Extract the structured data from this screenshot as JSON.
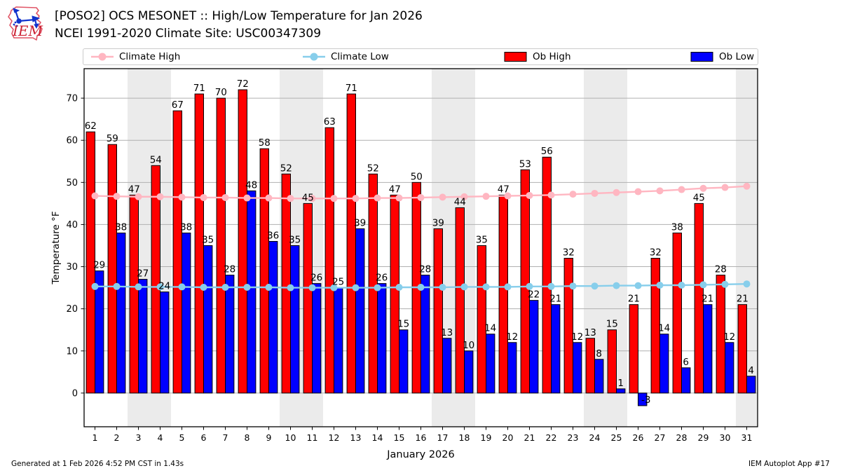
{
  "header": {
    "title": "[POSO2] OCS MESONET :: High/Low Temperature for Jan 2026",
    "subtitle": "NCEI 1991-2020 Climate Site: USC00347309",
    "logo_text": "IEM"
  },
  "footer": {
    "left": "Generated at 1 Feb 2026 4:52 PM CST in 1.43s",
    "right": "IEM Autoplot App #17"
  },
  "chart_data": {
    "type": "bar",
    "title": "[POSO2] OCS MESONET :: High/Low Temperature for Jan 2026",
    "subtitle": "NCEI 1991-2020 Climate Site: USC00347309",
    "xlabel": "January 2026",
    "ylabel": "Temperature °F",
    "ylim": [
      -8,
      77
    ],
    "yticks": [
      0,
      10,
      20,
      30,
      40,
      50,
      60,
      70
    ],
    "categories": [
      1,
      2,
      3,
      4,
      5,
      6,
      7,
      8,
      9,
      10,
      11,
      12,
      13,
      14,
      15,
      16,
      17,
      18,
      19,
      20,
      21,
      22,
      23,
      24,
      25,
      26,
      27,
      28,
      29,
      30,
      31
    ],
    "weekend_shading_days": [
      [
        3,
        4
      ],
      [
        10,
        11
      ],
      [
        17,
        18
      ],
      [
        24,
        25
      ],
      [
        31,
        31
      ]
    ],
    "series": [
      {
        "name": "Climate High",
        "type": "line",
        "color": "#ffb6c1",
        "values": [
          46.8,
          46.7,
          46.6,
          46.6,
          46.5,
          46.4,
          46.4,
          46.3,
          46.3,
          46.2,
          46.2,
          46.2,
          46.2,
          46.3,
          46.3,
          46.4,
          46.5,
          46.6,
          46.7,
          46.8,
          46.9,
          47.0,
          47.2,
          47.4,
          47.6,
          47.8,
          48.0,
          48.3,
          48.6,
          48.8,
          49.1
        ]
      },
      {
        "name": "Climate Low",
        "type": "line",
        "color": "#87ceeb",
        "values": [
          25.3,
          25.3,
          25.2,
          25.2,
          25.2,
          25.1,
          25.1,
          25.1,
          25.1,
          25.0,
          25.0,
          25.0,
          25.0,
          25.0,
          25.1,
          25.1,
          25.1,
          25.2,
          25.2,
          25.2,
          25.3,
          25.3,
          25.4,
          25.4,
          25.5,
          25.5,
          25.6,
          25.6,
          25.7,
          25.8,
          25.9
        ]
      },
      {
        "name": "Ob High",
        "type": "bar",
        "color": "#ff0000",
        "labeled": true,
        "values": [
          62,
          59,
          47,
          54,
          67,
          71,
          70,
          72,
          58,
          52,
          45,
          63,
          71,
          52,
          47,
          50,
          39,
          44,
          35,
          47,
          53,
          56,
          32,
          13,
          15,
          21,
          32,
          38,
          45,
          28,
          21
        ]
      },
      {
        "name": "Ob Low",
        "type": "bar",
        "color": "#0000ff",
        "labeled": true,
        "values": [
          29,
          38,
          27,
          24,
          38,
          35,
          28,
          48,
          36,
          35,
          26,
          25,
          39,
          26,
          15,
          28,
          13,
          10,
          14,
          12,
          22,
          21,
          12,
          8,
          1,
          -3,
          14,
          6,
          21,
          12,
          4
        ]
      }
    ],
    "colors": {
      "weekend_band": "#ebebeb",
      "grid": "#b0b0b0",
      "frame": "#000000",
      "label_text": "#000000",
      "logo_red": "#cc2233",
      "logo_outline": "#e05566",
      "logo_blue": "#1133cc"
    },
    "legend_position": "top",
    "grid": true
  }
}
